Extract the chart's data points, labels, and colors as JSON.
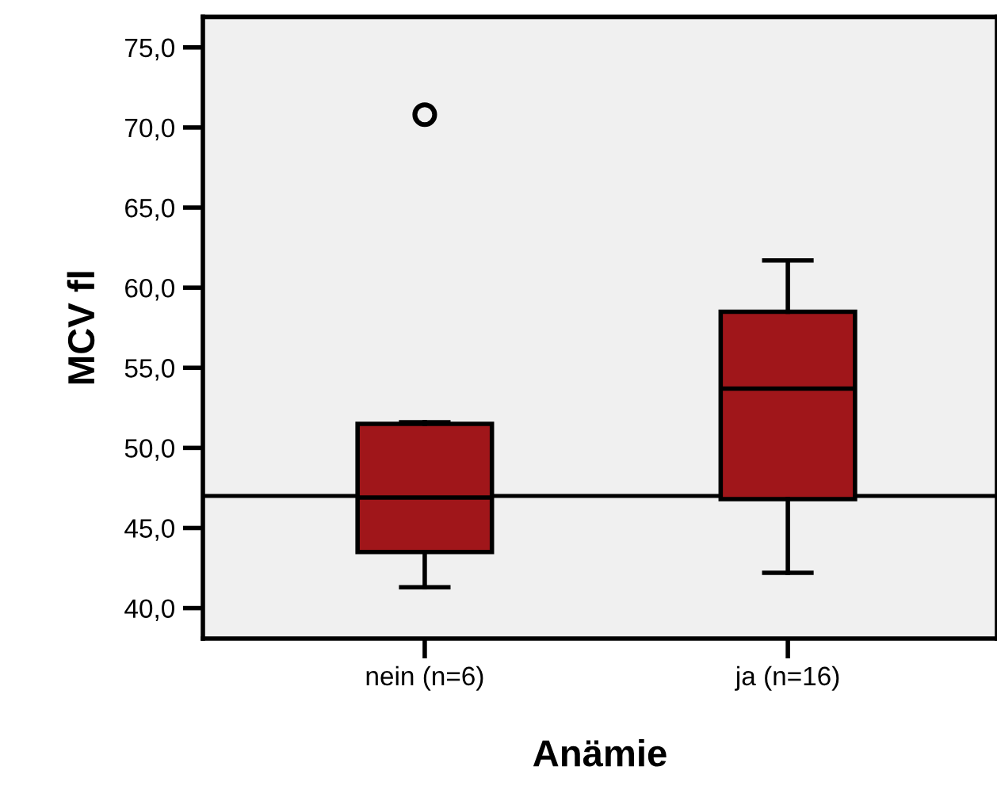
{
  "chart_data": {
    "type": "box",
    "xlabel": "Anämie",
    "ylabel": "MCV fl",
    "categories": [
      "nein (n=6)",
      "ja (n=16)"
    ],
    "boxes": [
      {
        "low": 41.3,
        "q1": 43.5,
        "median": 46.9,
        "q3": 51.5,
        "high": 51.6,
        "outliers": [
          70.8
        ]
      },
      {
        "low": 42.2,
        "q1": 46.8,
        "median": 53.7,
        "q3": 58.5,
        "high": 61.7
      }
    ],
    "color": "#a0161a",
    "ylim": [
      38.1,
      76.9
    ],
    "yticks": [
      {
        "value": 40,
        "label": "40,0"
      },
      {
        "value": 45,
        "label": "45,0"
      },
      {
        "value": 50,
        "label": "50,0"
      },
      {
        "value": 55,
        "label": "55,0"
      },
      {
        "value": 60,
        "label": "60,0"
      },
      {
        "value": 65,
        "label": "65,0"
      },
      {
        "value": 70,
        "label": "70,0"
      },
      {
        "value": 75,
        "label": "75,0"
      }
    ],
    "ref_lines": [
      {
        "axis": "y",
        "value": 47.0,
        "color": "#000000"
      }
    ],
    "grid": false,
    "legend": false
  }
}
